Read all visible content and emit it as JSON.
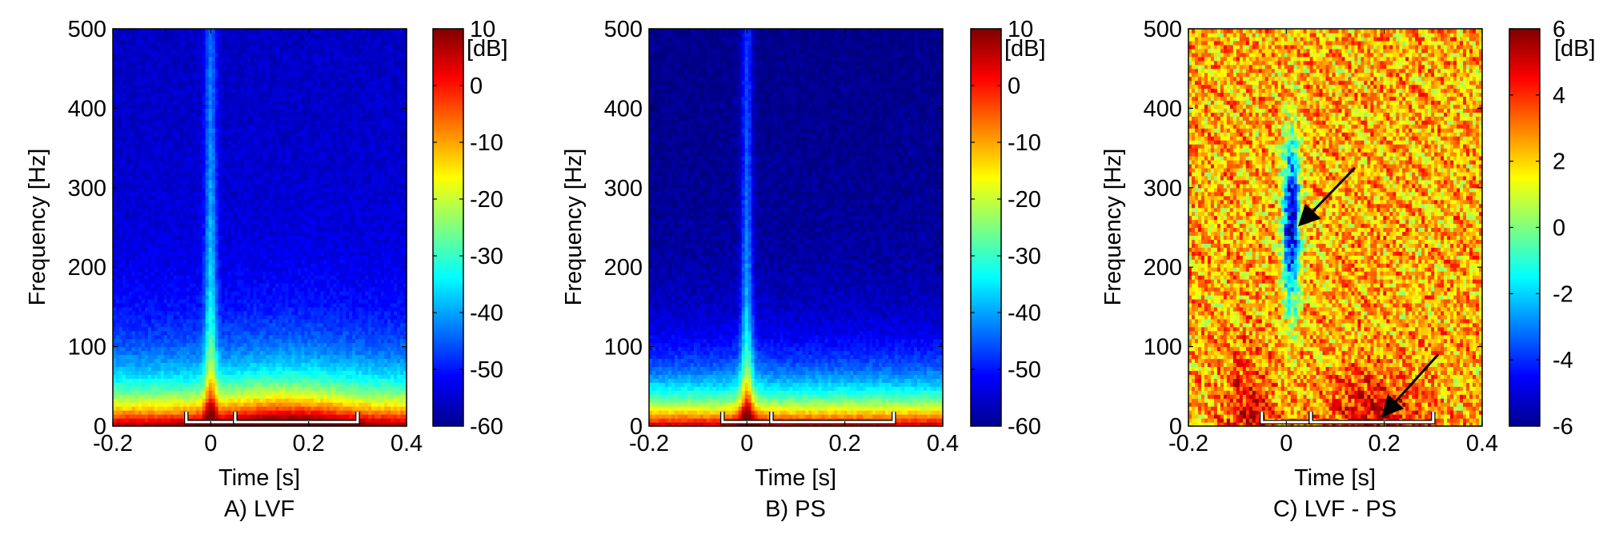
{
  "chart_data": [
    {
      "type": "heatmap",
      "subplot_label": "A) LVF",
      "xlabel": "Time [s]",
      "ylabel": "Frequency [Hz]",
      "xlim": [
        -0.2,
        0.4
      ],
      "ylim": [
        0,
        500
      ],
      "xticks": [
        "-0.2",
        "0",
        "0.2",
        "0.4"
      ],
      "yticks": [
        "0",
        "100",
        "200",
        "300",
        "400",
        "500"
      ],
      "colorbar": {
        "unit": "[dB]",
        "range": [
          -60,
          10
        ],
        "ticks": [
          "-60",
          "-50",
          "-40",
          "-30",
          "-20",
          "-10",
          "0",
          "10"
        ],
        "colormap": "jet"
      },
      "features": [
        {
          "feature": "low-frequency band",
          "freq_hz": [
            0,
            75
          ],
          "power_db": [
            -5,
            10
          ]
        },
        {
          "feature": "broadband transient at stimulus onset",
          "time_s": 0,
          "freq_hz": [
            0,
            500
          ],
          "peak_power_db": -35
        },
        {
          "feature": "post-stimulus high-power region",
          "time_s": [
            0.05,
            0.3
          ],
          "freq_hz": [
            0,
            60
          ],
          "power_db": 8
        },
        {
          "feature": "background",
          "freq_hz": [
            150,
            500
          ],
          "power_db": [
            -50,
            -40
          ]
        }
      ],
      "time_windows_s": [
        [
          -0.05,
          0.05
        ],
        [
          0.05,
          0.3
        ]
      ]
    },
    {
      "type": "heatmap",
      "subplot_label": "B) PS",
      "xlabel": "Time [s]",
      "ylabel": "Frequency [Hz]",
      "xlim": [
        -0.2,
        0.4
      ],
      "ylim": [
        0,
        500
      ],
      "xticks": [
        "-0.2",
        "0",
        "0.2",
        "0.4"
      ],
      "yticks": [
        "0",
        "100",
        "200",
        "300",
        "400",
        "500"
      ],
      "colorbar": {
        "unit": "[dB]",
        "range": [
          -60,
          10
        ],
        "ticks": [
          "-60",
          "-50",
          "-40",
          "-30",
          "-20",
          "-10",
          "0",
          "10"
        ],
        "colormap": "jet"
      },
      "features": [
        {
          "feature": "low-frequency band",
          "freq_hz": [
            0,
            70
          ],
          "power_db": [
            -10,
            5
          ]
        },
        {
          "feature": "broadband transient at stimulus onset",
          "time_s": 0,
          "freq_hz": [
            0,
            500
          ],
          "peak_power_db": -35
        },
        {
          "feature": "background",
          "freq_hz": [
            150,
            500
          ],
          "power_db": [
            -55,
            -45
          ]
        }
      ],
      "time_windows_s": [
        [
          -0.05,
          0.05
        ],
        [
          0.05,
          0.3
        ]
      ]
    },
    {
      "type": "heatmap",
      "subplot_label": "C) LVF - PS",
      "xlabel": "Time [s]",
      "ylabel": "Frequency [Hz]",
      "xlim": [
        -0.2,
        0.4
      ],
      "ylim": [
        0,
        500
      ],
      "xticks": [
        "-0.2",
        "0",
        "0.2",
        "0.4"
      ],
      "yticks": [
        "0",
        "100",
        "200",
        "300",
        "400",
        "500"
      ],
      "colorbar": {
        "unit": "[dB]",
        "range": [
          -6,
          6
        ],
        "ticks": [
          "-6",
          "-4",
          "-2",
          "0",
          "2",
          "4",
          "6"
        ],
        "colormap": "jet"
      },
      "features": [
        {
          "feature": "negative difference at onset",
          "time_s": 0.01,
          "freq_hz": [
            150,
            350
          ],
          "diff_db": -5
        },
        {
          "feature": "positive difference post-stimulus",
          "time_s": [
            0.05,
            0.3
          ],
          "freq_hz": [
            0,
            100
          ],
          "diff_db": 5.5
        },
        {
          "feature": "background",
          "freq_hz": [
            100,
            500
          ],
          "diff_db": [
            1.5,
            3.5
          ]
        }
      ],
      "arrows": [
        {
          "from": [
            0.14,
            325
          ],
          "to": [
            0.03,
            255
          ]
        },
        {
          "from": [
            0.31,
            90
          ],
          "to": [
            0.2,
            15
          ]
        }
      ],
      "time_windows_s": [
        [
          -0.05,
          0.05
        ],
        [
          0.05,
          0.3
        ]
      ]
    }
  ]
}
